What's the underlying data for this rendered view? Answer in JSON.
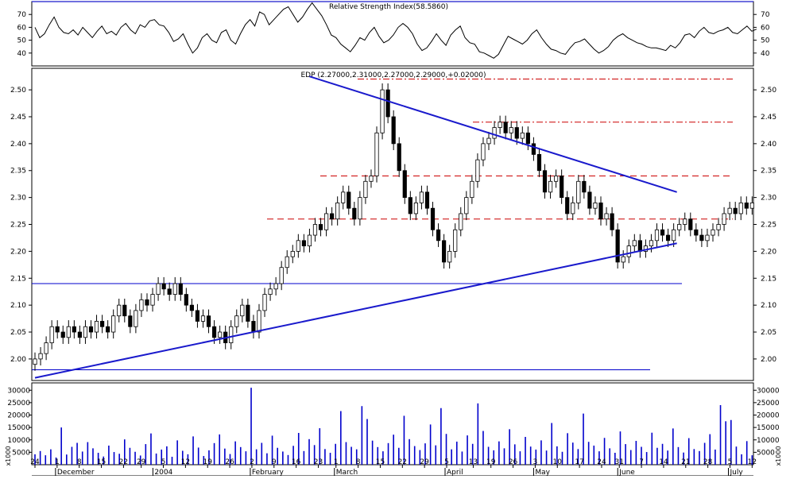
{
  "colors": {
    "frame": "#000000",
    "trend": "#1a1acc",
    "support": "#0000cc",
    "resistance": "#cc0000",
    "volume": "#0000cc",
    "candle_up": "#ffffff",
    "candle_down": "#000000",
    "background": "#ffffff"
  },
  "chart_data": [
    {
      "type": "line",
      "name": "rsi-panel",
      "title": "Relative Strength Index(58.5860)",
      "ylim": [
        30,
        80
      ],
      "y_ticks": [
        "40",
        "50",
        "60",
        "70"
      ],
      "y_tick_values": [
        40,
        50,
        60,
        70
      ],
      "x_day_range": [
        0,
        163
      ],
      "values": [
        60,
        52,
        55,
        62,
        68,
        60,
        56,
        55,
        58,
        54,
        60,
        56,
        52,
        57,
        61,
        55,
        57,
        54,
        60,
        63,
        58,
        55,
        62,
        60,
        65,
        66,
        62,
        61,
        56,
        49,
        51,
        55,
        47,
        40,
        44,
        52,
        55,
        50,
        48,
        56,
        58,
        50,
        47,
        55,
        62,
        66,
        61,
        72,
        70,
        62,
        66,
        70,
        74,
        76,
        70,
        64,
        68,
        74,
        79,
        74,
        69,
        62,
        54,
        52,
        47,
        44,
        41,
        46,
        52,
        50,
        56,
        60,
        53,
        48,
        50,
        54,
        60,
        63,
        60,
        55,
        47,
        42,
        44,
        49,
        55,
        50,
        46,
        54,
        58,
        61,
        52,
        48,
        47,
        41,
        40,
        38,
        36,
        39,
        46,
        53,
        51,
        49,
        47,
        50,
        55,
        58,
        52,
        47,
        43,
        42,
        40,
        39,
        44,
        48,
        49,
        51,
        47,
        43,
        40,
        42,
        45,
        50,
        53,
        55,
        52,
        50,
        48,
        47,
        45,
        44,
        44,
        43,
        42,
        46,
        44,
        48,
        54,
        55,
        52,
        57,
        60,
        56,
        55,
        57,
        58,
        60,
        56,
        55,
        58,
        61,
        57,
        58.59
      ]
    },
    {
      "type": "candlestick",
      "name": "price-panel",
      "title": "EDP (2.27000,2.31000,2.27000,2.29000,+0.02000)",
      "ylim": [
        1.96,
        2.54
      ],
      "y_ticks": [
        "2.00",
        "2.05",
        "2.10",
        "2.15",
        "2.20",
        "2.25",
        "2.30",
        "2.35",
        "2.40",
        "2.45",
        "2.50"
      ],
      "y_tick_values": [
        2.0,
        2.05,
        2.1,
        2.15,
        2.2,
        2.25,
        2.3,
        2.35,
        2.4,
        2.45,
        2.5
      ],
      "x_day_range": [
        0,
        163
      ],
      "closes": [
        2.0,
        2.01,
        2.03,
        2.06,
        2.05,
        2.04,
        2.06,
        2.05,
        2.04,
        2.06,
        2.05,
        2.07,
        2.06,
        2.05,
        2.08,
        2.1,
        2.08,
        2.06,
        2.09,
        2.11,
        2.1,
        2.12,
        2.14,
        2.13,
        2.12,
        2.14,
        2.12,
        2.1,
        2.09,
        2.07,
        2.08,
        2.06,
        2.04,
        2.05,
        2.03,
        2.06,
        2.08,
        2.1,
        2.07,
        2.05,
        2.09,
        2.12,
        2.13,
        2.14,
        2.17,
        2.19,
        2.2,
        2.22,
        2.21,
        2.23,
        2.25,
        2.24,
        2.27,
        2.26,
        2.29,
        2.31,
        2.28,
        2.26,
        2.3,
        2.33,
        2.34,
        2.42,
        2.5,
        2.45,
        2.4,
        2.35,
        2.3,
        2.27,
        2.29,
        2.31,
        2.28,
        2.24,
        2.22,
        2.18,
        2.2,
        2.24,
        2.27,
        2.3,
        2.33,
        2.37,
        2.4,
        2.41,
        2.43,
        2.44,
        2.42,
        2.43,
        2.41,
        2.42,
        2.4,
        2.38,
        2.35,
        2.31,
        2.33,
        2.34,
        2.3,
        2.27,
        2.29,
        2.33,
        2.31,
        2.28,
        2.29,
        2.26,
        2.27,
        2.24,
        2.18,
        2.19,
        2.21,
        2.22,
        2.2,
        2.21,
        2.22,
        2.24,
        2.23,
        2.22,
        2.24,
        2.25,
        2.26,
        2.24,
        2.23,
        2.22,
        2.23,
        2.24,
        2.25,
        2.27,
        2.28,
        2.27,
        2.29,
        2.28,
        2.29
      ],
      "support_lines": [
        2.14,
        1.98
      ],
      "resistance_lines": [
        2.26,
        2.34
      ],
      "resistance_dashdot_lines": [
        2.44,
        2.52
      ],
      "trendlines": [
        {
          "name": "upper",
          "from": [
            62,
            2.525
          ],
          "to": [
            145,
            2.31
          ]
        },
        {
          "name": "lower",
          "from": [
            0,
            1.965
          ],
          "to": [
            145,
            2.215
          ]
        }
      ]
    },
    {
      "type": "bar",
      "name": "volume-panel",
      "ylim": [
        0,
        32000
      ],
      "y_ticks": [
        "5000",
        "10000",
        "15000",
        "20000",
        "25000",
        "30000"
      ],
      "y_tick_values": [
        5000,
        10000,
        15000,
        20000,
        25000,
        30000
      ],
      "axis_unit": "x1000",
      "x_day_range": [
        0,
        163
      ],
      "values": [
        4200,
        5500,
        3800,
        6200,
        2900,
        15000,
        4100,
        7200,
        8800,
        5300,
        9100,
        6600,
        4800,
        3300,
        7700,
        5100,
        4400,
        10200,
        6800,
        5200,
        3700,
        8300,
        12600,
        4500,
        6100,
        7400,
        3200,
        9800,
        5600,
        4200,
        11400,
        6900,
        3500,
        5800,
        8700,
        12200,
        6500,
        4300,
        9400,
        7100,
        5400,
        31000,
        6200,
        8800,
        4600,
        11700,
        6800,
        5300,
        3900,
        7600,
        12800,
        5500,
        10300,
        7900,
        14700,
        6300,
        4800,
        8400,
        21600,
        9100,
        7200,
        6200,
        23600,
        18400,
        9700,
        7100,
        5400,
        8700,
        12100,
        6800,
        19700,
        10300,
        7500,
        5900,
        8600,
        16200,
        7800,
        22800,
        12400,
        6200,
        9300,
        5300,
        11800,
        8400,
        24700,
        13600,
        7200,
        5800,
        9400,
        6600,
        14300,
        8200,
        5400,
        11200,
        7300,
        6100,
        9800,
        5700,
        16800,
        7400,
        5200,
        12700,
        8900,
        6300,
        20600,
        9200,
        7700,
        5400,
        10800,
        6600,
        4800,
        13400,
        8300,
        5900,
        9600,
        7200,
        5100,
        12900,
        6800,
        8400,
        5700,
        14600,
        7100,
        4900,
        10700,
        6300,
        5500,
        8800,
        12300,
        6100,
        24000,
        17500,
        18000,
        7300,
        4200,
        9500,
        3800
      ]
    }
  ],
  "x_axis": {
    "day_labels": [
      "24",
      "1",
      "8",
      "15",
      "22",
      "29",
      "5",
      "12",
      "19",
      "26",
      "2",
      "9",
      "16",
      "23",
      "1",
      "8",
      "15",
      "22",
      "29",
      "5",
      "13",
      "19",
      "26",
      "3",
      "10",
      "17",
      "24",
      "31",
      "7",
      "14",
      "21",
      "28",
      "5",
      "12"
    ],
    "day_label_days": [
      0,
      5,
      10,
      15,
      20,
      24,
      29,
      34,
      39,
      44,
      49,
      54,
      59,
      64,
      68,
      73,
      78,
      83,
      88,
      93,
      99,
      103,
      108,
      113,
      118,
      123,
      128,
      132,
      137,
      142,
      147,
      152,
      157,
      162
    ],
    "month_labels": [
      "December",
      "2004",
      "February",
      "March",
      "April",
      "May",
      "June",
      "July"
    ],
    "month_label_days": [
      5,
      27,
      49,
      68,
      93,
      113,
      132,
      157
    ]
  }
}
